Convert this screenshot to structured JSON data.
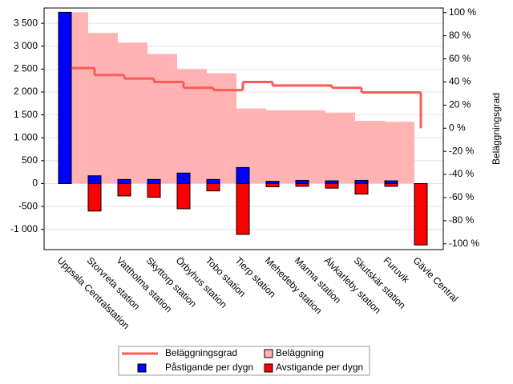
{
  "chart_data": {
    "type": "combo",
    "categories": [
      "Uppsala Centralstation",
      "Storvreta station",
      "Vattholma station",
      "Skyttorp station",
      "Örbyhus station",
      "Tobo station",
      "Tierp station",
      "Mehedeby station",
      "Marma station",
      "Älvkarleby station",
      "Skutskär station",
      "Furuvik",
      "Gävle Central"
    ],
    "series": [
      {
        "name": "Beläggning",
        "type": "step-area",
        "color": "#ffb3b3",
        "values": [
          3740,
          3290,
          3080,
          2830,
          2500,
          2410,
          1640,
          1600,
          1600,
          1550,
          1370,
          1350,
          0
        ]
      },
      {
        "name": "Påstigande per dygn",
        "type": "bar",
        "color": "#0000ff",
        "values": [
          3740,
          170,
          90,
          90,
          230,
          90,
          350,
          50,
          70,
          60,
          70,
          60,
          0
        ]
      },
      {
        "name": "Avstigande per dygn",
        "type": "bar",
        "color": "#ff0000",
        "values": [
          0,
          -600,
          -270,
          -300,
          -550,
          -160,
          -1110,
          -70,
          -60,
          -100,
          -230,
          -60,
          -1340
        ]
      },
      {
        "name": "Beläggningsgrad",
        "type": "step-line",
        "color": "#ff5a5a",
        "axis": "y2",
        "values": [
          52,
          46,
          43,
          40,
          35,
          33,
          40,
          37,
          37,
          35,
          31,
          31,
          0
        ]
      }
    ],
    "y2label": "Beläggningsgrad",
    "ylim": [
      -1442,
      3834
    ],
    "yticks": [
      {
        "value": -1000,
        "label": "-1 000"
      },
      -500,
      0,
      500,
      {
        "value": 1000,
        "label": "1 000"
      },
      {
        "value": 1500,
        "label": "1 500"
      },
      {
        "value": 2000,
        "label": "2 000"
      },
      {
        "value": 2500,
        "label": "2 500"
      },
      {
        "value": 3000,
        "label": "3 000"
      },
      {
        "value": 3500,
        "label": "3 500"
      }
    ],
    "y2lim": [
      -105,
      104
    ],
    "y2ticks": [
      {
        "value": -100,
        "label": "-100 %"
      },
      {
        "value": -80,
        "label": "-80 %"
      },
      {
        "value": -60,
        "label": "-60 %"
      },
      {
        "value": -40,
        "label": "-40 %"
      },
      {
        "value": -20,
        "label": "-20 %"
      },
      {
        "value": 0,
        "label": "0 %"
      },
      {
        "value": 20,
        "label": "20 %"
      },
      {
        "value": 40,
        "label": "40 %"
      },
      {
        "value": 60,
        "label": "60 %"
      },
      {
        "value": 80,
        "label": "80 %"
      },
      {
        "value": 100,
        "label": "100 %"
      }
    ],
    "grid": true,
    "legend_order": [
      3,
      0,
      1,
      2
    ]
  }
}
